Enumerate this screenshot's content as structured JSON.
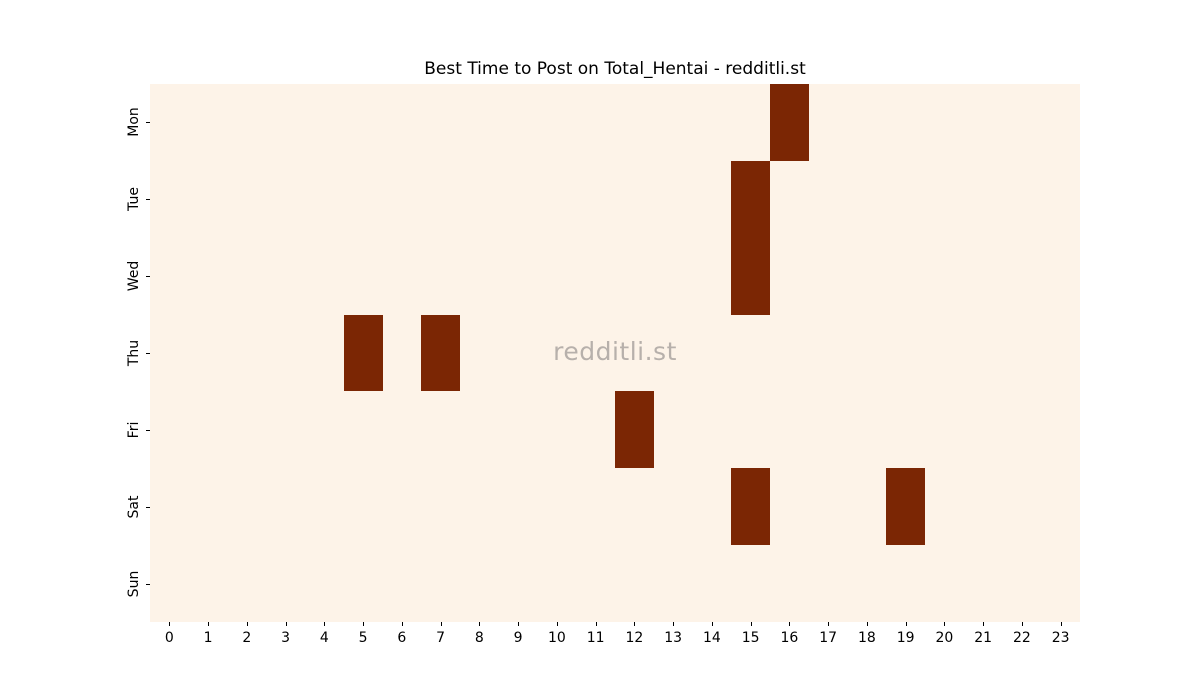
{
  "title": "Best Time to Post on Total_Hentai - redditli.st",
  "watermark": "redditli.st",
  "colors": {
    "figure_bg": "#ffffff",
    "plot_bg": "#fdf3e8",
    "cell_active": "#7b2604",
    "watermark": "#b7b0ab",
    "tick": "#000000"
  },
  "chart_data": {
    "type": "heatmap",
    "title": "Best Time to Post on Total_Hentai - redditli.st",
    "rows": [
      "Mon",
      "Tue",
      "Wed",
      "Thu",
      "Fri",
      "Sat",
      "Sun"
    ],
    "columns": [
      0,
      1,
      2,
      3,
      4,
      5,
      6,
      7,
      8,
      9,
      10,
      11,
      12,
      13,
      14,
      15,
      16,
      17,
      18,
      19,
      20,
      21,
      22,
      23
    ],
    "active_cells": [
      {
        "day": "Mon",
        "hour": 16
      },
      {
        "day": "Tue",
        "hour": 15
      },
      {
        "day": "Wed",
        "hour": 15
      },
      {
        "day": "Thu",
        "hour": 5
      },
      {
        "day": "Thu",
        "hour": 7
      },
      {
        "day": "Fri",
        "hour": 12
      },
      {
        "day": "Sat",
        "hour": 15
      },
      {
        "day": "Sat",
        "hour": 19
      }
    ],
    "value_scale": {
      "inactive": 0,
      "active": 1
    },
    "legend": "none",
    "grid": false
  }
}
